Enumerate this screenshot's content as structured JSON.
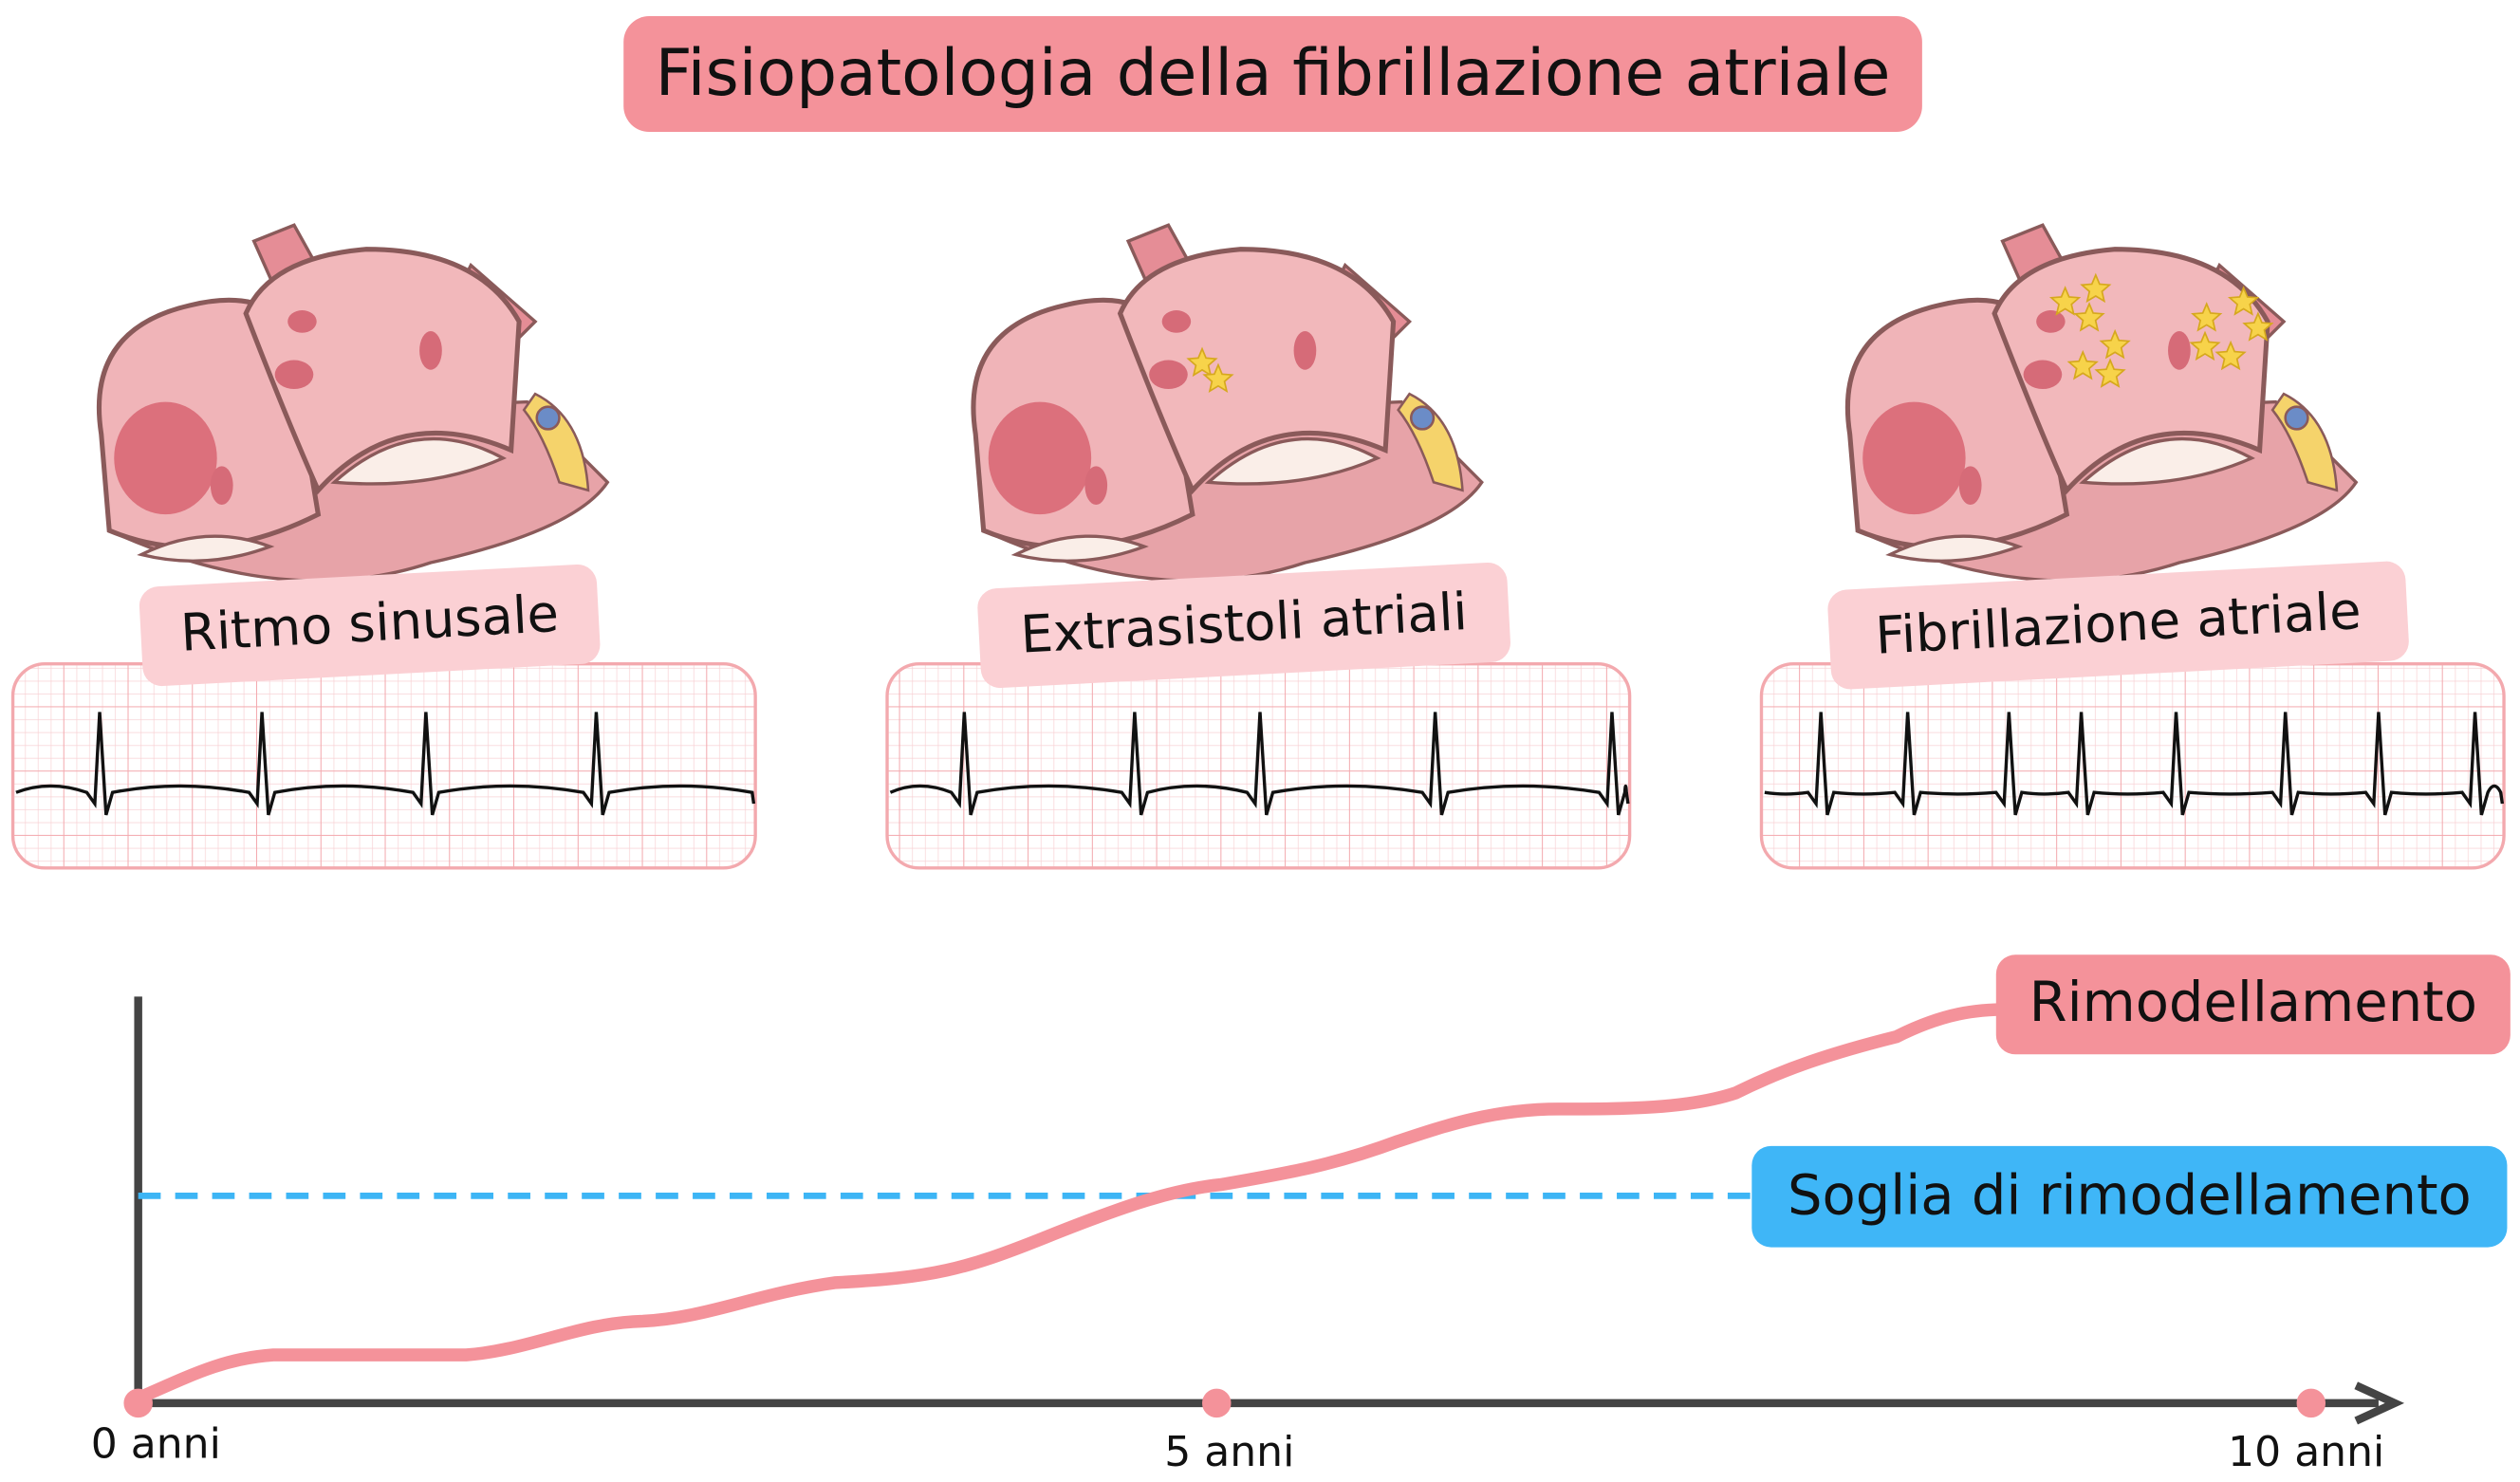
{
  "title": "Fisiopatologia della fibrillazione atriale",
  "panels": [
    {
      "label": "Ritmo sinusale"
    },
    {
      "label": "Extrasistoli atriali"
    },
    {
      "label": "Fibrillazione atriale"
    }
  ],
  "timeline": {
    "ticks": [
      "0 anni",
      "5 anni",
      "10 anni"
    ],
    "curve_label": "Rimodellamento",
    "threshold_label": "Soglia di rimodellamento"
  }
}
